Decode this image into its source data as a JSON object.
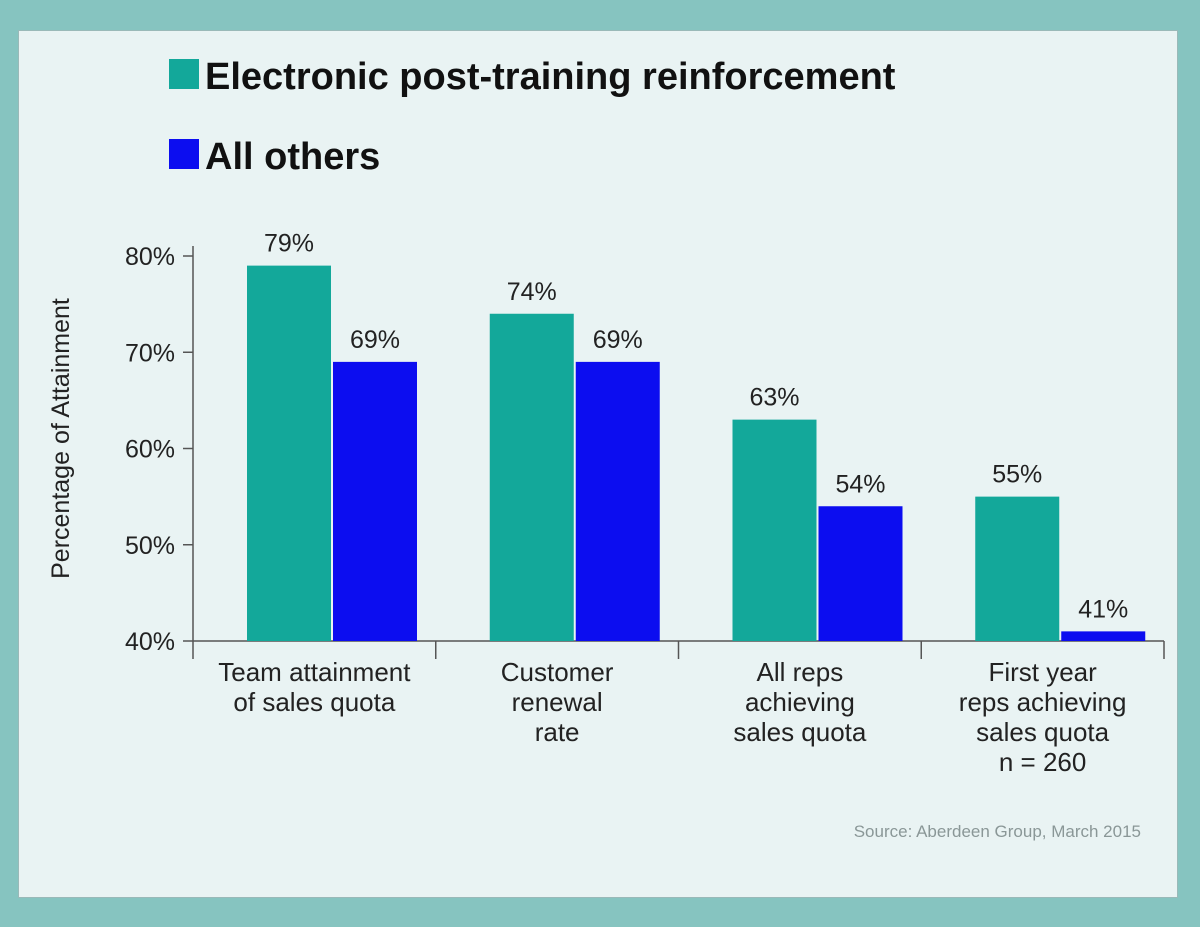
{
  "chart_data": {
    "type": "bar",
    "categories": [
      [
        "Team attainment",
        "of sales quota"
      ],
      [
        "Customer",
        "renewal",
        "rate"
      ],
      [
        "All reps",
        "achieving",
        "sales quota"
      ],
      [
        "First year",
        "reps achieving",
        "sales quota",
        "n = 260"
      ]
    ],
    "series": [
      {
        "name": "Electronic post-training reinforcement",
        "values": [
          79,
          74,
          63,
          55
        ],
        "labels": [
          "79%",
          "74%",
          "63%",
          "55%"
        ],
        "color": "#13a89a"
      },
      {
        "name": "All others",
        "values": [
          69,
          69,
          54,
          41
        ],
        "labels": [
          "69%",
          "69%",
          "54%",
          "41%"
        ],
        "color": "#0c0df0"
      }
    ],
    "ylabel": "Percentage of Attainment",
    "ylim": [
      40,
      80
    ],
    "yticks": [
      40,
      50,
      60,
      70,
      80
    ],
    "ytick_labels": [
      "40%",
      "50%",
      "60%",
      "70%",
      "80%"
    ],
    "legend_position": "top-left",
    "source": "Source: Aberdeen Group, March 2015",
    "grid": false
  },
  "colors": {
    "page_border": "#86c4c0",
    "panel": "#e9f3f3",
    "axis": "#555555"
  }
}
